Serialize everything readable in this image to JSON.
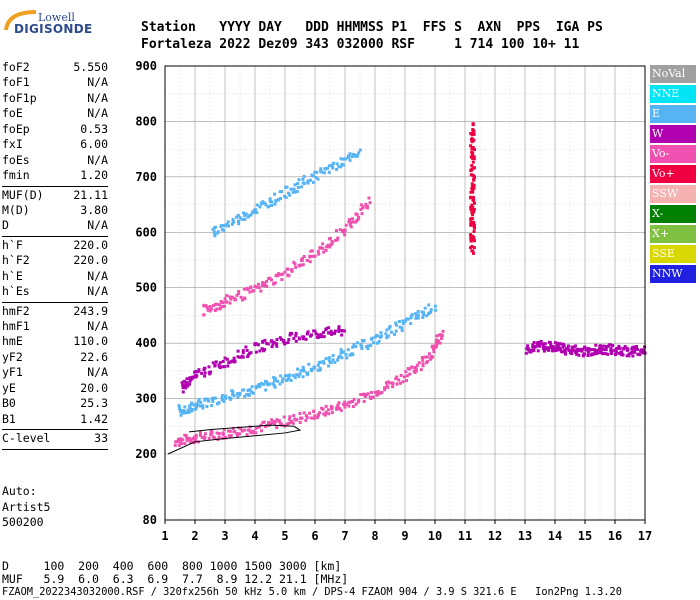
{
  "logo": {
    "top": "Lowell",
    "bottom": "DIGISONDE"
  },
  "header": {
    "line1": "Station   YYYY DAY   DDD HHMMSS P1  FFS S  AXN  PPS  IGA PS",
    "line2": "Fortaleza 2022 Dez09 343 032000 RSF     1 714 100 10+ 11"
  },
  "params": [
    {
      "name": "foF2",
      "value": "5.550"
    },
    {
      "name": "foF1",
      "value": "N/A"
    },
    {
      "name": "foF1p",
      "value": "N/A"
    },
    {
      "name": "foE",
      "value": "N/A"
    },
    {
      "name": "foEp",
      "value": "0.53"
    },
    {
      "name": "fxI",
      "value": "6.00"
    },
    {
      "name": "foEs",
      "value": "N/A"
    },
    {
      "name": "fmin",
      "value": "1.20"
    },
    {
      "sep": true
    },
    {
      "name": "MUF(D)",
      "value": "21.11"
    },
    {
      "name": "M(D)",
      "value": "3.80"
    },
    {
      "name": "D",
      "value": "N/A"
    },
    {
      "sep": true
    },
    {
      "name": "h`F",
      "value": "220.0"
    },
    {
      "name": "h`F2",
      "value": "220.0"
    },
    {
      "name": "h`E",
      "value": "N/A"
    },
    {
      "name": "h`Es",
      "value": "N/A"
    },
    {
      "sep": true
    },
    {
      "name": "hmF2",
      "value": "243.9"
    },
    {
      "name": "hmF1",
      "value": "N/A"
    },
    {
      "name": "hmE",
      "value": "110.0"
    },
    {
      "name": "yF2",
      "value": "22.6"
    },
    {
      "name": "yF1",
      "value": "N/A"
    },
    {
      "name": "yE",
      "value": "20.0"
    },
    {
      "name": "B0",
      "value": "25.3"
    },
    {
      "name": "B1",
      "value": "1.42"
    },
    {
      "sep": true
    },
    {
      "name": "C-level",
      "value": "33"
    },
    {
      "sep": true
    }
  ],
  "auto": {
    "line1": "Auto:",
    "line2": "Artist5",
    "line3": "500200"
  },
  "bottom": {
    "d_row": "D     100  200  400  600  800 1000 1500 3000 [km]",
    "muf_row": "MUF   5.9  6.0  6.3  6.9  7.7  8.9 12.2 21.1 [MHz]",
    "footer": "FZAOM_2022343032000.RSF / 320fx256h 50 kHz 5.0 km / DPS-4 FZAOM 904 / 3.9 S 321.6 E   Ion2Png 1.3.20"
  },
  "legend": [
    {
      "label": "NoVal",
      "color": "#a0a0a0"
    },
    {
      "label": "NNE",
      "color": "#00e5f5"
    },
    {
      "label": "E",
      "color": "#56b4f5"
    },
    {
      "label": "W",
      "color": "#b000b0"
    },
    {
      "label": "Vo-",
      "color": "#f050b0"
    },
    {
      "label": "Vo+",
      "color": "#f00040"
    },
    {
      "label": "SSW",
      "color": "#f5b0b0"
    },
    {
      "label": "X-",
      "color": "#008000"
    },
    {
      "label": "X+",
      "color": "#80c040"
    },
    {
      "label": "SSE",
      "color": "#d8d800"
    },
    {
      "label": "NNW",
      "color": "#2020e0"
    }
  ],
  "chart_data": {
    "type": "scatter",
    "title": "",
    "xlabel": "",
    "ylabel": "",
    "xlim": [
      1,
      17
    ],
    "ylim": [
      80,
      900
    ],
    "x_ticks": [
      "1",
      "2",
      "3",
      "4",
      "5",
      "6",
      "7",
      "8",
      "9",
      "10",
      "11",
      "12",
      "13",
      "14",
      "15",
      "16",
      "17"
    ],
    "y_ticks": [
      "80",
      "200",
      "300",
      "400",
      "500",
      "600",
      "700",
      "800",
      "900"
    ],
    "y_tick_values": [
      80,
      200,
      300,
      400,
      500,
      600,
      700,
      800,
      900
    ],
    "grid": true,
    "legend_placement": "right",
    "series": [
      {
        "color": "#f050b0",
        "points": [
          [
            1.3,
            225
          ],
          [
            2,
            232
          ],
          [
            3,
            240
          ],
          [
            4,
            250
          ],
          [
            5,
            262
          ],
          [
            6,
            275
          ],
          [
            7,
            292
          ],
          [
            8,
            315
          ],
          [
            9,
            345
          ],
          [
            9.8,
            380
          ],
          [
            10.2,
            420
          ]
        ]
      },
      {
        "color": "#56b4f5",
        "points": [
          [
            1.4,
            280
          ],
          [
            2,
            290
          ],
          [
            3,
            305
          ],
          [
            4,
            320
          ],
          [
            5,
            340
          ],
          [
            6,
            360
          ],
          [
            7,
            385
          ],
          [
            8,
            410
          ],
          [
            9,
            440
          ],
          [
            10,
            470
          ]
        ]
      },
      {
        "color": "#b000b0",
        "points": [
          [
            1.5,
            320
          ],
          [
            2,
            345
          ],
          [
            3,
            370
          ],
          [
            4,
            395
          ],
          [
            5,
            410
          ],
          [
            6,
            420
          ],
          [
            7,
            425
          ]
        ]
      },
      {
        "color": "#f050b0",
        "points": [
          [
            2.2,
            460
          ],
          [
            3,
            478
          ],
          [
            4,
            500
          ],
          [
            5,
            530
          ],
          [
            6,
            565
          ],
          [
            7,
            610
          ],
          [
            7.8,
            660
          ]
        ]
      },
      {
        "color": "#56b4f5",
        "points": [
          [
            2.5,
            600
          ],
          [
            3.5,
            630
          ],
          [
            4.5,
            660
          ],
          [
            5.5,
            690
          ],
          [
            6.5,
            720
          ],
          [
            7.5,
            745
          ]
        ]
      },
      {
        "color": "#f00040",
        "points": [
          [
            11.2,
            570
          ],
          [
            11.2,
            620
          ],
          [
            11.2,
            680
          ],
          [
            11.2,
            740
          ],
          [
            11.2,
            800
          ]
        ]
      },
      {
        "color": "#b000b0",
        "points": [
          [
            13,
            392
          ],
          [
            13.5,
            398
          ],
          [
            14,
            395
          ],
          [
            14.5,
            390
          ],
          [
            15,
            388
          ],
          [
            15.5,
            392
          ],
          [
            16,
            390
          ],
          [
            16.5,
            388
          ],
          [
            17,
            392
          ]
        ]
      }
    ]
  }
}
